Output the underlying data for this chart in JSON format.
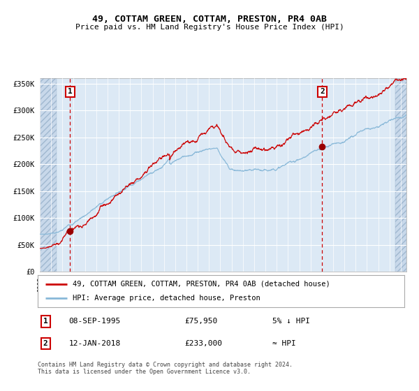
{
  "title": "49, COTTAM GREEN, COTTAM, PRESTON, PR4 0AB",
  "subtitle": "Price paid vs. HM Land Registry's House Price Index (HPI)",
  "legend_line1": "49, COTTAM GREEN, COTTAM, PRESTON, PR4 0AB (detached house)",
  "legend_line2": "HPI: Average price, detached house, Preston",
  "annotation1_label": "1",
  "annotation1_date": "08-SEP-1995",
  "annotation1_price": "£75,950",
  "annotation1_hpi": "5% ↓ HPI",
  "annotation2_label": "2",
  "annotation2_date": "12-JAN-2018",
  "annotation2_price": "£233,000",
  "annotation2_hpi": "≈ HPI",
  "footer": "Contains HM Land Registry data © Crown copyright and database right 2024.\nThis data is licensed under the Open Government Licence v3.0.",
  "bg_color": "#dce9f5",
  "hatch_bg": "#c8d8ea",
  "grid_color": "#ffffff",
  "red": "#cc0000",
  "blue": "#88b8d8",
  "marker": "#990000",
  "ylim": [
    0,
    360000
  ],
  "yticks": [
    0,
    50000,
    100000,
    150000,
    200000,
    250000,
    300000,
    350000
  ],
  "sale1_x": 1995.69,
  "sale1_y": 75950,
  "sale2_x": 2018.04,
  "sale2_y": 233000,
  "xmin": 1993.0,
  "xmax": 2025.5,
  "hatch_right_start": 2024.5,
  "hatch_left_end": 1994.5
}
